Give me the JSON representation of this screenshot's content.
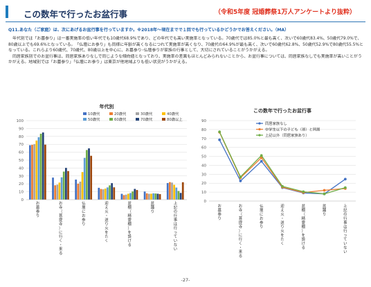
{
  "header": {
    "title": "この数年で行ったお盆行事",
    "subtitle": "（令和5年度 冠婚葬祭1万人アンケートより抜粋）"
  },
  "question": "Q11.あなた（ご家庭）は、次にあげるお盆行事を行っていますか。※2018年～現在までで１回でも行っているかどうかでお答えください。（MA）",
  "paragraphs": [
    "年代別では「お墓参り」は一番実施率の低い年代でも10歳代68.9%であり、どの年代でも高い実施率となっている。70歳代では85.0%と最も高く、次いで60歳代83.4%、50歳代79.0%で、80歳以上でも69.6%となっている。「仏壇にお参り」も同様に年齢が高くなるにつれて実施率が高くなり、70歳代の64.9%が最も高く、次いで60歳代62.8%、50歳代52.9%で80歳代55.5%となっている。これらより60歳代、70歳代、80歳以上を中心に、お墓参り･仏壇参りが家族の行事として、大切にされていることがうかがえる。",
    "同居家族別でのお盆行事は、同居家族ありなしで同じような傾向値となっており、実施率の差異もほとんどみられないことから、お盆行事については、同居家族なしでも実施率が高いことがうかがえる。地域別では「お墓参り」「仏壇にお参り」は東京が他地域よりも低い状況がうかがえる。"
  ],
  "page_number": "-27-",
  "chart_data": [
    {
      "type": "bar",
      "title": "年代別",
      "categories": [
        "お墓参り",
        "お寺（菩提寺）に行く・来る",
        "仏壇にお参り",
        "迎え火・送り火をたく",
        "盆棚（精霊棚）を設ける",
        "盆踊り",
        "上記の行事は行っていない"
      ],
      "ylim": [
        0,
        100
      ],
      "yticks": [
        0,
        10,
        20,
        30,
        40,
        50,
        60,
        70,
        80,
        90,
        100
      ],
      "legend_position": "top-right",
      "series": [
        {
          "name": "10歳代",
          "color": "#4472c4",
          "values": [
            68.9,
            27.9,
            25.4,
            15.0,
            7.4,
            10.3,
            21.0
          ]
        },
        {
          "name": "20歳代",
          "color": "#ed7d31",
          "values": [
            69.4,
            18.2,
            20.3,
            13.5,
            5.8,
            8.0,
            22.2
          ]
        },
        {
          "name": "30歳代",
          "color": "#a5a5a5",
          "values": [
            70.3,
            19.0,
            22.8,
            13.1,
            6.4,
            7.4,
            21.6
          ]
        },
        {
          "name": "40歳代",
          "color": "#ffc000",
          "values": [
            74.8,
            21.6,
            34.9,
            14.0,
            7.5,
            7.5,
            18.8
          ]
        },
        {
          "name": "50歳代",
          "color": "#5b9bd5",
          "values": [
            79.0,
            28.3,
            52.9,
            15.5,
            8.4,
            8.0,
            15.3
          ]
        },
        {
          "name": "60歳代",
          "color": "#70ad47",
          "values": [
            83.4,
            35.5,
            62.8,
            18.1,
            10.4,
            7.8,
            11.0
          ]
        },
        {
          "name": "70歳代",
          "color": "#264478",
          "values": [
            85.0,
            40.2,
            64.9,
            20.9,
            13.6,
            7.5,
            8.5
          ]
        },
        {
          "name": "80歳以上",
          "color": "#9e480e",
          "values": [
            69.6,
            36.2,
            55.5,
            15.6,
            12.2,
            7.0,
            22.0
          ]
        }
      ]
    },
    {
      "type": "line",
      "title": "この数年で行ったお盆行事",
      "categories": [
        "お墓参り",
        "お寺（菩提寺）に行く・来る",
        "仏壇にお参り",
        "迎え火・送り火をたく",
        "盆棚（精霊棚）を設ける",
        "盆踊り",
        "上記の行事は行っていない"
      ],
      "ylim": [
        0,
        90
      ],
      "yticks": [
        0,
        10,
        20,
        30,
        40,
        50,
        60,
        70,
        80,
        90
      ],
      "legend_position": "top-left",
      "series": [
        {
          "name": "同居家族なし",
          "color": "#4472c4",
          "values": [
            68.5,
            22.5,
            44.5,
            15.0,
            9.0,
            8.0,
            24.5
          ]
        },
        {
          "name": "中学生以下の子ども（孫）と同居",
          "color": "#ed7d31",
          "values": [
            77.0,
            26.0,
            48.5,
            15.5,
            9.5,
            12.0,
            14.0
          ]
        },
        {
          "name": "上記以外（同居家族あり）",
          "color": "#70ad47",
          "values": [
            77.5,
            27.0,
            51.0,
            16.5,
            10.5,
            8.0,
            15.0
          ]
        }
      ]
    }
  ]
}
